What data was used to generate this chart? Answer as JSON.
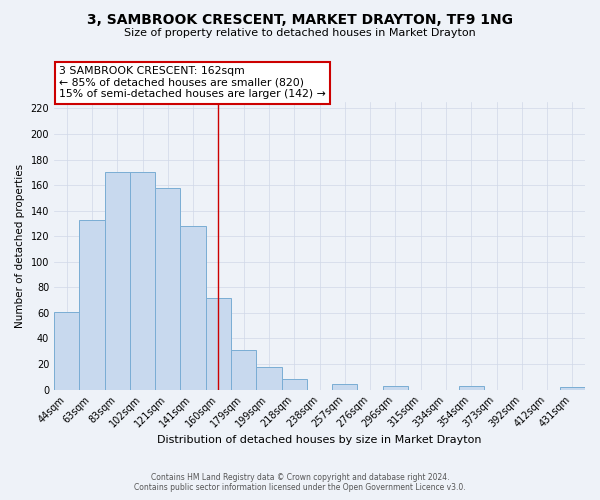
{
  "title": "3, SAMBROOK CRESCENT, MARKET DRAYTON, TF9 1NG",
  "subtitle": "Size of property relative to detached houses in Market Drayton",
  "xlabel": "Distribution of detached houses by size in Market Drayton",
  "ylabel": "Number of detached properties",
  "footer_line1": "Contains HM Land Registry data © Crown copyright and database right 2024.",
  "footer_line2": "Contains public sector information licensed under the Open Government Licence v3.0.",
  "bar_labels": [
    "44sqm",
    "63sqm",
    "83sqm",
    "102sqm",
    "121sqm",
    "141sqm",
    "160sqm",
    "179sqm",
    "199sqm",
    "218sqm",
    "238sqm",
    "257sqm",
    "276sqm",
    "296sqm",
    "315sqm",
    "334sqm",
    "354sqm",
    "373sqm",
    "392sqm",
    "412sqm",
    "431sqm"
  ],
  "bar_values": [
    61,
    133,
    170,
    170,
    158,
    128,
    72,
    31,
    18,
    8,
    0,
    4,
    0,
    3,
    0,
    0,
    3,
    0,
    0,
    0,
    2
  ],
  "bar_color": "#c8d9ee",
  "bar_edge_color": "#7aadd4",
  "grid_color": "#d0d8e8",
  "bg_color": "#eef2f8",
  "annotation_property": "3 SAMBROOK CRESCENT: 162sqm",
  "annotation_line1": "← 85% of detached houses are smaller (820)",
  "annotation_line2": "15% of semi-detached houses are larger (142) →",
  "property_line_x": 6.0,
  "ylim": [
    0,
    225
  ],
  "yticks": [
    0,
    20,
    40,
    60,
    80,
    100,
    120,
    140,
    160,
    180,
    200,
    220
  ],
  "annotation_box_color": "#ffffff",
  "annotation_box_edge": "#cc0000",
  "property_line_color": "#cc0000"
}
